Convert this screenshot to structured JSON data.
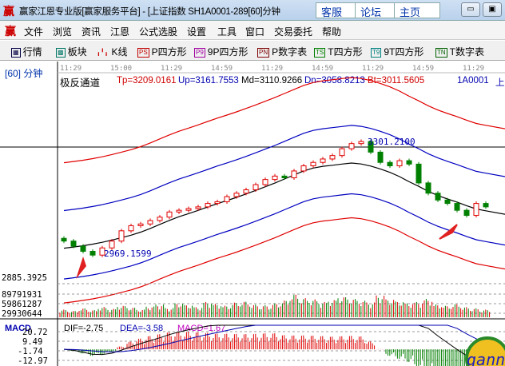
{
  "window": {
    "logo": "赢",
    "title": "赢家江恩专业版[赢家服务平台] - [上证指数  SH1A0001-289[60]分钟",
    "buttons": [
      "客服",
      "论坛",
      "主页"
    ],
    "minimize": "▭",
    "restore": "▣"
  },
  "menu": {
    "logo": "赢",
    "items": [
      "文件",
      "浏览",
      "资讯",
      "江恩",
      "公式选股",
      "设置",
      "工具",
      "窗口",
      "交易委托",
      "帮助"
    ]
  },
  "toolbar": {
    "items": [
      {
        "icon": "grid",
        "label": "行情"
      },
      {
        "icon": "blocks",
        "label": "板块"
      },
      {
        "icon": "candles",
        "label": "K线"
      },
      {
        "icon": "PS",
        "label": "P四方形",
        "color": "#c00000"
      },
      {
        "icon": "P9",
        "label": "9P四方形",
        "color": "#a000a0"
      },
      {
        "icon": "PN",
        "label": "P数字表",
        "color": "#800000"
      },
      {
        "icon": "TS",
        "label": "T四方形",
        "color": "#008000"
      },
      {
        "icon": "T9",
        "label": "9T四方形",
        "color": "#008080"
      },
      {
        "icon": "TN",
        "label": "T数字表",
        "color": "#006000"
      }
    ]
  },
  "chart": {
    "period": "[60] 分钟",
    "indicator": "极反通道",
    "tp": "Tp=3209.0161",
    "up": "Up=3161.7553",
    "md": "Md=3110.9266",
    "dn": "Dn=3058.8213",
    "bt": "Bt=3011.5605",
    "code": "1A0001",
    "code_suffix": "上",
    "time_labels": [
      "11:29",
      "15:00",
      "11:29",
      "14:59",
      "11:29",
      "14:59",
      "11:29",
      "14:59",
      "11:29",
      "14:"
    ],
    "high_label": "3301.2100",
    "low_label": "2969.1599",
    "price_floor": "2885.3925",
    "volume_ticks": [
      "89791931",
      "59861287",
      "29930644"
    ],
    "macd": {
      "name": "MACD",
      "dif": "DIF=-2.75",
      "dea": "DEA=-3.58",
      "macd": "MACD=1.67",
      "ticks": [
        "20.72",
        "9.49",
        "-1.74",
        "-12.97"
      ]
    },
    "logo": "gann",
    "colors": {
      "up": "#e00000",
      "down": "#008000",
      "band_outer": "#e00000",
      "band_inner": "#0000c0",
      "mid": "#000000"
    }
  },
  "chart_data": {
    "type": "candlestick",
    "closes": [
      3010,
      2995,
      2980,
      2969,
      2990,
      3010,
      3040,
      3055,
      3060,
      3070,
      3080,
      3095,
      3100,
      3105,
      3110,
      3120,
      3125,
      3140,
      3150,
      3160,
      3175,
      3190,
      3200,
      3195,
      3215,
      3230,
      3240,
      3250,
      3260,
      3280,
      3295,
      3301,
      3270,
      3240,
      3230,
      3245,
      3235,
      3180,
      3150,
      3130,
      3120,
      3100,
      3085,
      3120,
      3110
    ],
    "volumes_millions": [
      30,
      25,
      35,
      28,
      40,
      33,
      45,
      38,
      30,
      42,
      50,
      36,
      55,
      48,
      40,
      60,
      52,
      45,
      58,
      62,
      50,
      47,
      55,
      66,
      90,
      75,
      70,
      60,
      68,
      80,
      72,
      65,
      58,
      85,
      70,
      62,
      55,
      60,
      72,
      50,
      45,
      52,
      40,
      35,
      30
    ],
    "ylim": [
      2885.3925,
      3470
    ]
  }
}
